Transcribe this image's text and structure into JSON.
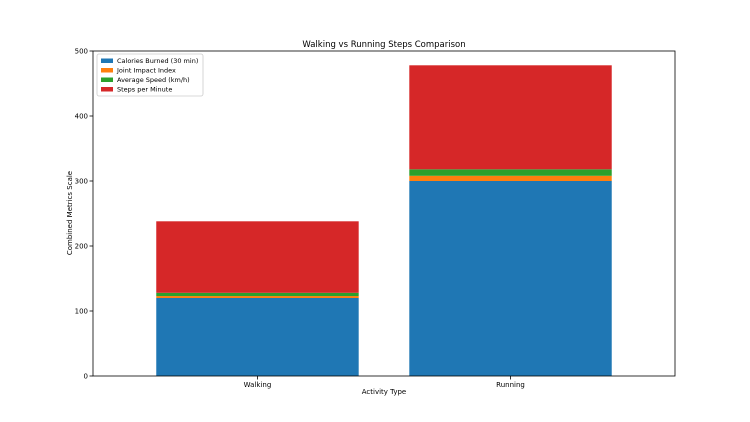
{
  "chart_data": {
    "type": "bar",
    "stacked": true,
    "title": "Walking vs Running Steps Comparison",
    "xlabel": "Activity Type",
    "ylabel": "Combined Metrics Scale",
    "categories": [
      "Walking",
      "Running"
    ],
    "ylim": [
      0,
      500
    ],
    "yticks": [
      0,
      100,
      200,
      300,
      400,
      500
    ],
    "grid": false,
    "legend_position": "top-left",
    "series": [
      {
        "name": "Calories Burned (30 min)",
        "values": [
          120,
          300
        ],
        "color": "#1f77b4"
      },
      {
        "name": "Joint Impact Index",
        "values": [
          3,
          8
        ],
        "color": "#ff7f0e"
      },
      {
        "name": "Average Speed (km/h)",
        "values": [
          5,
          10
        ],
        "color": "#2ca02c"
      },
      {
        "name": "Steps per Minute",
        "values": [
          110,
          160
        ],
        "color": "#d62728"
      }
    ]
  }
}
